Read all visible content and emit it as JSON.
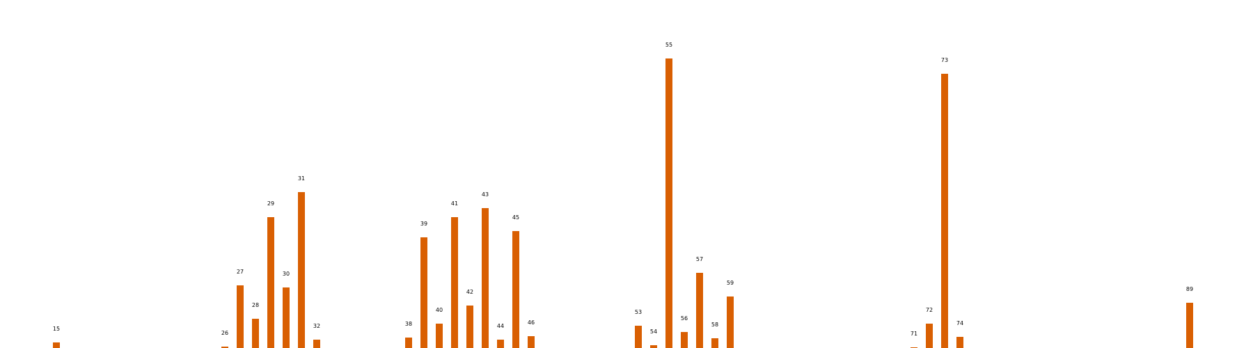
{
  "chart_data": {
    "type": "bar",
    "colors": {
      "bar": "#d95f02"
    },
    "grid": false,
    "axes_visible": false,
    "note": "Bar heights are relative, read off pixel heights; the chart prints no value axis.",
    "categories": [
      15,
      26,
      27,
      28,
      29,
      30,
      31,
      32,
      38,
      39,
      40,
      41,
      42,
      43,
      44,
      45,
      46,
      53,
      54,
      55,
      56,
      57,
      58,
      59,
      71,
      72,
      73,
      74,
      89
    ],
    "labels": [
      "15",
      "26",
      "27",
      "28",
      "29",
      "30",
      "31",
      "32",
      "38",
      "39",
      "40",
      "41",
      "42",
      "43",
      "44",
      "45",
      "46",
      "53",
      "54",
      "55",
      "56",
      "57",
      "58",
      "59",
      "71",
      "72",
      "73",
      "74",
      "89"
    ],
    "values": [
      8,
      2,
      90,
      42,
      188,
      87,
      224,
      12,
      15,
      159,
      35,
      188,
      61,
      201,
      12,
      168,
      17,
      32,
      4,
      416,
      23,
      108,
      14,
      74,
      1,
      35,
      394,
      16,
      65
    ]
  }
}
